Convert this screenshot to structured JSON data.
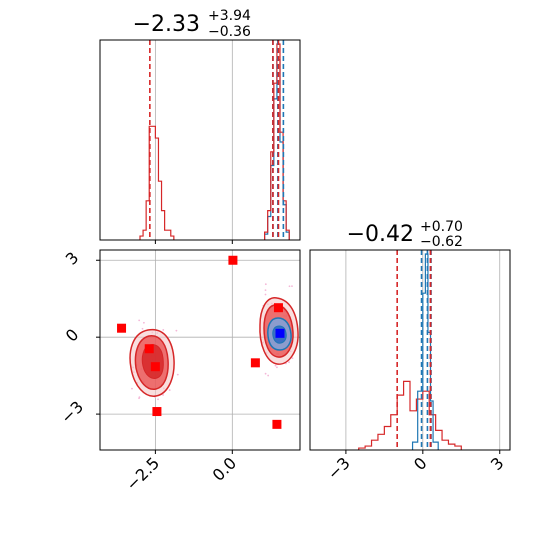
{
  "chart_data": {
    "type": "corner",
    "grid": true,
    "colors": {
      "red": "#d62728",
      "blue": "#1f77b4",
      "marker": "#ff0000",
      "truth_marker": "#0000ff",
      "kde_fill_red": "#e84a4a",
      "kde_fill_blue": "#3a6fc4",
      "grid": "#b0b0b0",
      "scatter": "#f4b8d8"
    },
    "param1": {
      "title": {
        "median": "−2.33",
        "plus": "+3.94",
        "minus": "−0.36"
      },
      "xlim": [
        -4.3,
        2.2
      ],
      "xticks": [
        {
          "v": -2.5,
          "label": "−2.5"
        },
        {
          "v": 0.0,
          "label": "0.0"
        }
      ],
      "red_hist": {
        "edges": [
          -3.0,
          -2.9,
          -2.8,
          -2.7,
          -2.6,
          -2.5,
          -2.4,
          -2.3,
          -2.2,
          -2.1,
          -2.0,
          -1.9
        ],
        "counts": [
          0.02,
          0.05,
          0.2,
          0.58,
          0.58,
          0.52,
          0.3,
          0.15,
          0.05,
          0.05,
          0.02
        ]
      },
      "red_hist2": {
        "edges": [
          1.05,
          1.15,
          1.25,
          1.35,
          1.45,
          1.55,
          1.65,
          1.75,
          1.85
        ],
        "counts": [
          0.04,
          0.15,
          0.45,
          0.8,
          1.0,
          0.55,
          0.2,
          0.05
        ]
      },
      "blue_hist": {
        "edges": [
          1.05,
          1.15,
          1.25,
          1.35,
          1.45,
          1.55,
          1.65,
          1.75,
          1.85
        ],
        "counts": [
          0.03,
          0.12,
          0.38,
          0.72,
          0.92,
          0.5,
          0.18,
          0.04
        ]
      },
      "red_quantile_lines": [
        -2.68,
        1.32,
        1.5
      ],
      "blue_quantile_lines": [
        1.32,
        1.48,
        1.66
      ]
    },
    "param2": {
      "title": {
        "median": "−0.42",
        "plus": "+0.70",
        "minus": "−0.62"
      },
      "xlim": [
        -4.4,
        3.4
      ],
      "xticks": [
        {
          "v": -3,
          "label": "−3"
        },
        {
          "v": 0,
          "label": "0"
        },
        {
          "v": 3,
          "label": "3"
        }
      ],
      "red_hist": {
        "edges": [
          -2.5,
          -2.25,
          -2.0,
          -1.75,
          -1.5,
          -1.25,
          -1.0,
          -0.75,
          -0.5,
          -0.25,
          0.0,
          0.25,
          0.5,
          0.75,
          1.0,
          1.25,
          1.5
        ],
        "counts": [
          0.01,
          0.02,
          0.05,
          0.08,
          0.12,
          0.18,
          0.28,
          0.35,
          0.2,
          0.26,
          0.3,
          0.18,
          0.1,
          0.05,
          0.03,
          0.02
        ]
      },
      "blue_hist": {
        "edges": [
          -0.4,
          -0.2,
          0.0,
          0.1,
          0.2,
          0.3,
          0.4,
          0.6
        ],
        "counts": [
          0.04,
          0.3,
          0.8,
          1.0,
          0.6,
          0.25,
          0.04
        ]
      },
      "red_quantile_lines": [
        -1.0,
        0.3,
        0.3
      ],
      "blue_quantile_lines": [
        -0.05,
        0.18,
        0.32
      ]
    },
    "joint": {
      "xlim": [
        -4.3,
        2.2
      ],
      "ylim": [
        -4.4,
        3.4
      ],
      "yticks": [
        {
          "v": 3,
          "label": "3"
        },
        {
          "v": 0,
          "label": "0"
        },
        {
          "v": -3,
          "label": "−3"
        }
      ],
      "red_markers": [
        {
          "x": 0.02,
          "y": 3.0
        },
        {
          "x": -3.6,
          "y": 0.35
        },
        {
          "x": -2.7,
          "y": -0.45
        },
        {
          "x": -2.5,
          "y": -1.15
        },
        {
          "x": -2.45,
          "y": -2.9
        },
        {
          "x": 0.75,
          "y": -1.0
        },
        {
          "x": 1.5,
          "y": 1.15
        },
        {
          "x": 1.45,
          "y": -3.4
        }
      ],
      "blue_marker": {
        "x": 1.55,
        "y": 0.15
      }
    }
  }
}
